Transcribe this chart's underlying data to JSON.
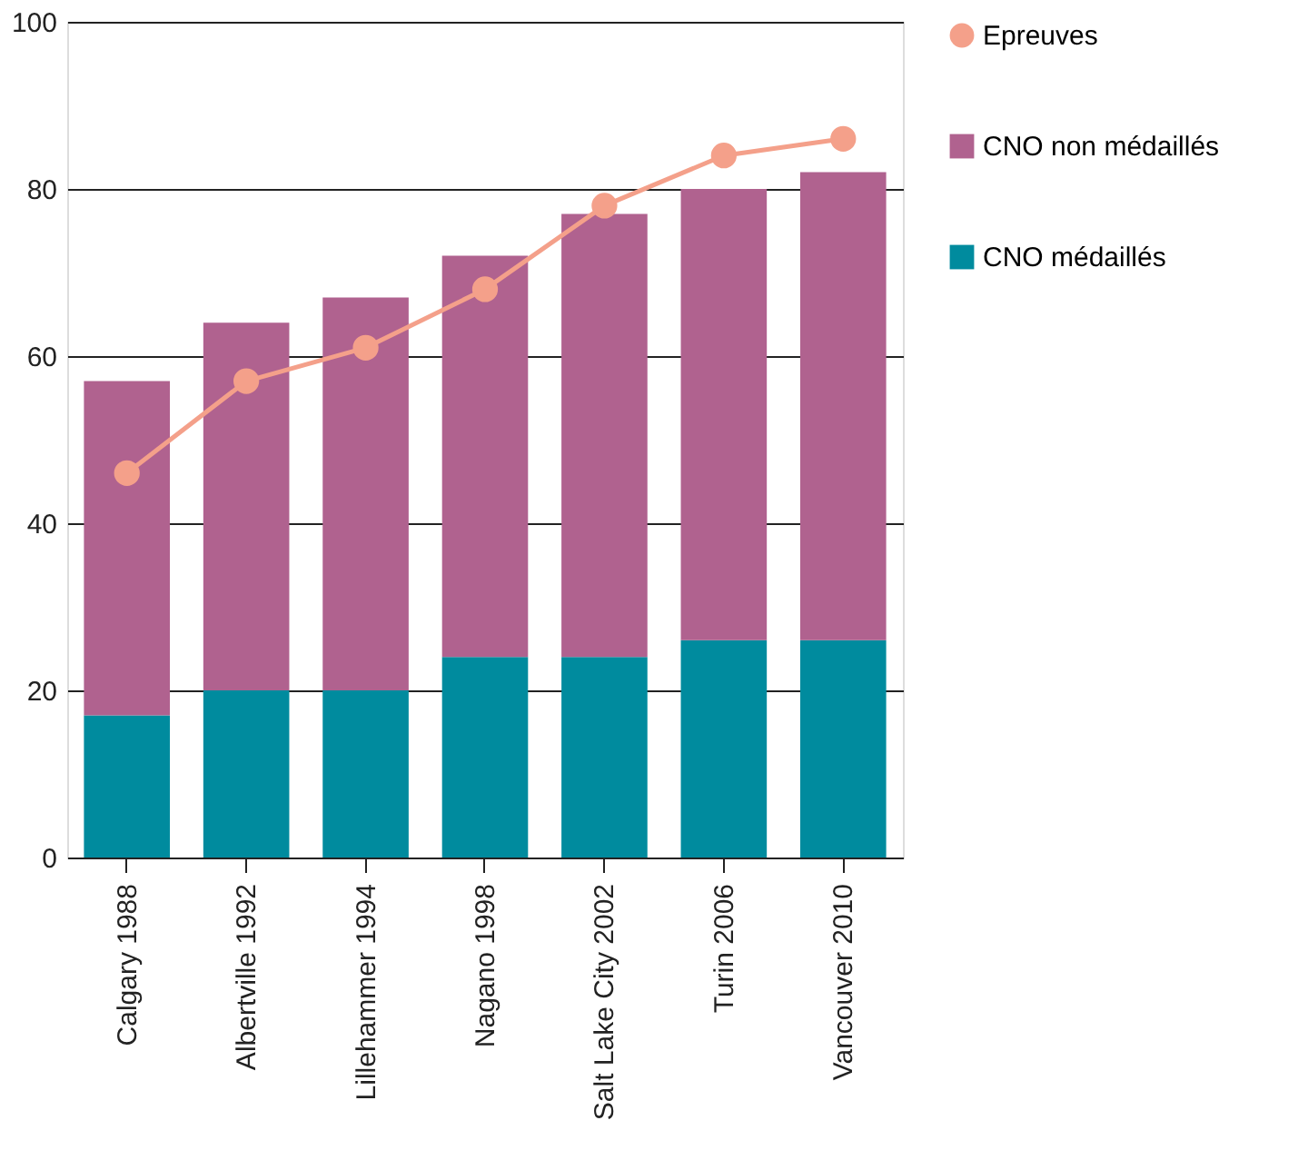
{
  "chart_data": {
    "type": "bar",
    "stacked": true,
    "categories": [
      "Calgary 1988",
      "Albertville 1992",
      "Lillehammer 1994",
      "Nagano 1998",
      "Salt Lake City 2002",
      "Turin 2006",
      "Vancouver 2010"
    ],
    "series": [
      {
        "name": "CNO médaillés",
        "color": "#008b9e",
        "values": [
          17,
          20,
          20,
          24,
          24,
          26,
          26
        ]
      },
      {
        "name": "CNO non médaillés",
        "color": "#b0628f",
        "values": [
          40,
          44,
          47,
          48,
          53,
          54,
          56
        ]
      },
      {
        "name": "Epreuves",
        "type": "line",
        "color": "#f4a08a",
        "marker": "circle",
        "values": [
          46,
          57,
          61,
          68,
          78,
          84,
          86
        ]
      }
    ],
    "ylim": [
      0,
      100
    ],
    "yticks": [
      0,
      20,
      40,
      60,
      80,
      100
    ],
    "grid": "y",
    "legend": "right"
  }
}
